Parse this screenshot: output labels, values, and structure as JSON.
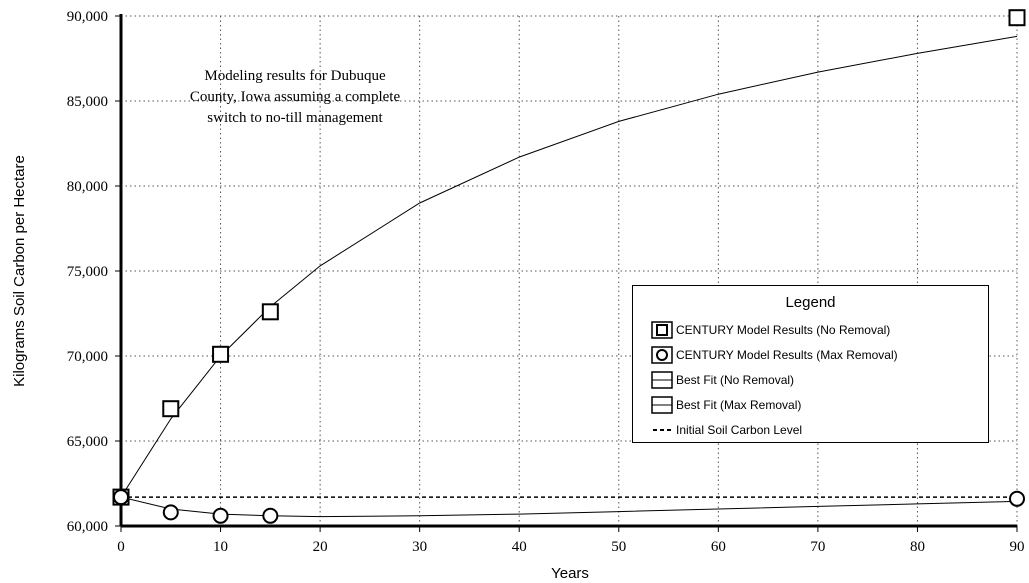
{
  "chart_data": {
    "type": "line",
    "xlabel": "Years",
    "ylabel": "Kilograms Soil Carbon per Hectare",
    "xlim": [
      0,
      90
    ],
    "ylim": [
      60000,
      90000
    ],
    "x_ticks": [
      0,
      10,
      20,
      30,
      40,
      50,
      60,
      70,
      80,
      90
    ],
    "y_ticks": [
      60000,
      65000,
      70000,
      75000,
      80000,
      85000,
      90000
    ],
    "x_tick_labels": [
      "0",
      "10",
      "20",
      "30",
      "40",
      "50",
      "60",
      "70",
      "80",
      "90"
    ],
    "y_tick_labels": [
      "60,000",
      "65,000",
      "70,000",
      "75,000",
      "80,000",
      "85,000",
      "90,000"
    ],
    "grid": true,
    "legend_position": "right",
    "annotation": [
      "Modeling results for Dubuque",
      "County, Iowa assuming a complete",
      "switch to no-till management"
    ],
    "legend_title": "Legend",
    "series": [
      {
        "name": "CENTURY Model Results (No Removal)",
        "kind": "markers",
        "marker": "square",
        "x": [
          0,
          5,
          10,
          15,
          90
        ],
        "y": [
          61700,
          66900,
          70100,
          72600,
          89900
        ]
      },
      {
        "name": "CENTURY Model Results (Max Removal)",
        "kind": "markers",
        "marker": "circle",
        "x": [
          0,
          5,
          10,
          15,
          90
        ],
        "y": [
          61700,
          60800,
          60600,
          60600,
          61600
        ]
      },
      {
        "name": "Best Fit (No Removal)",
        "kind": "line",
        "x": [
          0,
          5,
          10,
          15,
          20,
          30,
          40,
          50,
          60,
          70,
          80,
          90
        ],
        "y": [
          61700,
          66300,
          70000,
          72900,
          75300,
          79000,
          81700,
          83800,
          85400,
          86700,
          87800,
          88800
        ]
      },
      {
        "name": "Best Fit (Max Removal)",
        "kind": "line",
        "x": [
          0,
          5,
          10,
          15,
          20,
          30,
          40,
          50,
          60,
          70,
          80,
          90
        ],
        "y": [
          61700,
          61000,
          60700,
          60600,
          60550,
          60600,
          60700,
          60850,
          61000,
          61150,
          61300,
          61450
        ]
      },
      {
        "name": "Initial Soil Carbon Level",
        "kind": "dashed",
        "x": [
          0,
          90
        ],
        "y": [
          61700,
          61700
        ]
      }
    ]
  }
}
